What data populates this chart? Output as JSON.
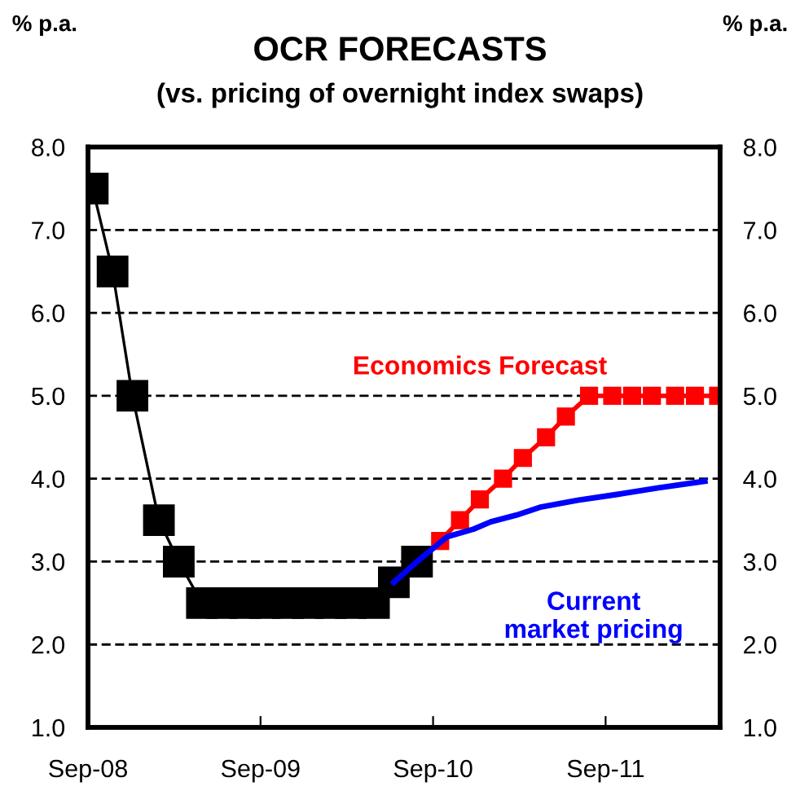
{
  "chart_data": {
    "type": "line",
    "title": "OCR FORECASTS",
    "subtitle": "(vs. pricing of overnight index swaps)",
    "ylabel": "% p.a.",
    "y2label": "% p.a.",
    "xlim": [
      "2008-09-01",
      "2012-04-30"
    ],
    "xticks": [
      {
        "value": "2008-09-01",
        "label": "Sep-08"
      },
      {
        "value": "2009-09-01",
        "label": "Sep-09"
      },
      {
        "value": "2010-09-01",
        "label": "Sep-10"
      },
      {
        "value": "2011-09-01",
        "label": "Sep-11"
      }
    ],
    "ylim": [
      1,
      8
    ],
    "yticks": [
      {
        "value": 1,
        "label": "1.0"
      },
      {
        "value": 2,
        "label": "2.0"
      },
      {
        "value": 3,
        "label": "3.0"
      },
      {
        "value": 4,
        "label": "4.0"
      },
      {
        "value": 5,
        "label": "5.0"
      },
      {
        "value": 6,
        "label": "6.0"
      },
      {
        "value": 7,
        "label": "7.0"
      },
      {
        "value": 8,
        "label": "8.0"
      }
    ],
    "y2lim": [
      1,
      8
    ],
    "y2ticks": [
      {
        "value": 1,
        "label": "1.0"
      },
      {
        "value": 2,
        "label": "2.0"
      },
      {
        "value": 3,
        "label": "3.0"
      },
      {
        "value": 4,
        "label": "4.0"
      },
      {
        "value": 5,
        "label": "5.0"
      },
      {
        "value": 6,
        "label": "6.0"
      },
      {
        "value": 7,
        "label": "7.0"
      },
      {
        "value": 8,
        "label": "8.0"
      }
    ],
    "grid": "y",
    "legend": false,
    "line_style": "solid",
    "series": [
      {
        "color": "#000000",
        "marker": "square",
        "x": [
          "2008-09-11",
          "2008-10-23",
          "2008-12-04",
          "2009-01-29",
          "2009-03-12",
          "2009-04-30",
          "2009-06-11",
          "2009-07-30",
          "2009-09-10",
          "2009-10-29",
          "2009-12-10",
          "2010-01-28",
          "2010-03-11",
          "2010-04-29",
          "2010-06-10",
          "2010-07-29"
        ],
        "values": [
          7.5,
          6.5,
          5.0,
          3.5,
          3.0,
          2.5,
          2.5,
          2.5,
          2.5,
          2.5,
          2.5,
          2.5,
          2.5,
          2.5,
          2.75,
          3.0
        ]
      },
      {
        "name": "Economics Forecast",
        "color": "#ff0000",
        "marker": "square",
        "x": [
          "2010-09-16",
          "2010-10-28",
          "2010-12-09",
          "2011-01-27",
          "2011-03-10",
          "2011-04-28",
          "2011-06-09",
          "2011-07-28",
          "2011-09-15",
          "2011-10-27",
          "2011-12-08",
          "2012-01-26",
          "2012-03-08",
          "2012-04-26"
        ],
        "values": [
          3.25,
          3.5,
          3.75,
          4.0,
          4.25,
          4.5,
          4.75,
          5.0,
          5.0,
          5.0,
          5.0,
          5.0,
          5.0,
          5.0
        ]
      },
      {
        "name": "Current\nmarket pricing",
        "color": "#0000ff",
        "marker": "none",
        "x": [
          "2010-06-10",
          "2010-07-29",
          "2010-10-01",
          "2010-11-25",
          "2011-01-01",
          "2011-02-24",
          "2011-04-18",
          "2011-07-04",
          "2011-09-25",
          "2011-12-22",
          "2012-03-29"
        ],
        "values": [
          2.75,
          3.0,
          3.3,
          3.39,
          3.48,
          3.56,
          3.66,
          3.74,
          3.81,
          3.89,
          3.97
        ]
      }
    ]
  }
}
